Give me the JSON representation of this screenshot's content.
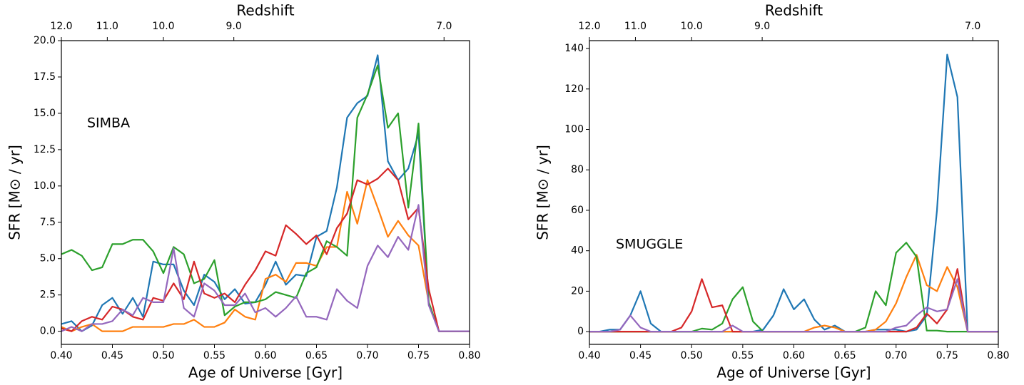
{
  "chart_data": [
    {
      "type": "line",
      "x_label": "Age of Universe [Gyr]",
      "y_label": "SFR [M⊙ / yr]",
      "x2_label": "Redshift",
      "annotation": "SIMBA",
      "annotation_color": "#b22222",
      "xlim": [
        0.4,
        0.8
      ],
      "ylim": [
        -0.9,
        20.0
      ],
      "xticks": [
        {
          "value": 0.4,
          "label": "0.40"
        },
        {
          "value": 0.45,
          "label": "0.45"
        },
        {
          "value": 0.5,
          "label": "0.50"
        },
        {
          "value": 0.55,
          "label": "0.55"
        },
        {
          "value": 0.6,
          "label": "0.60"
        },
        {
          "value": 0.65,
          "label": "0.65"
        },
        {
          "value": 0.7,
          "label": "0.70"
        },
        {
          "value": 0.75,
          "label": "0.75"
        },
        {
          "value": 0.8,
          "label": "0.80"
        }
      ],
      "yticks": [
        {
          "value": 0,
          "label": "0.0"
        },
        2.5,
        {
          "value": 5,
          "label": "5.0"
        },
        7.5,
        {
          "value": 10,
          "label": "10.0"
        },
        12.5,
        {
          "value": 15,
          "label": "15.0"
        },
        17.5,
        {
          "value": 20,
          "label": "20.0"
        }
      ],
      "x2ticks": [
        {
          "value": 0.4,
          "label": "12.0"
        },
        {
          "value": 0.445,
          "label": "11.0"
        },
        {
          "value": 0.5,
          "label": "10.0"
        },
        {
          "value": 0.569,
          "label": "9.0"
        },
        {
          "value": 0.775,
          "label": "7.0"
        }
      ],
      "x": [
        0.4,
        0.41,
        0.42,
        0.43,
        0.44,
        0.45,
        0.46,
        0.47,
        0.48,
        0.49,
        0.5,
        0.51,
        0.52,
        0.53,
        0.54,
        0.55,
        0.56,
        0.57,
        0.58,
        0.59,
        0.6,
        0.61,
        0.62,
        0.63,
        0.64,
        0.65,
        0.66,
        0.67,
        0.68,
        0.69,
        0.7,
        0.71,
        0.72,
        0.73,
        0.74,
        0.75,
        0.76,
        0.77,
        0.78,
        0.79,
        0.8
      ],
      "series": [
        {
          "color": "#1f77b4",
          "values": [
            0.5,
            0.7,
            0.0,
            0.4,
            1.8,
            2.3,
            1.2,
            2.3,
            1.0,
            4.8,
            4.6,
            4.6,
            2.8,
            1.8,
            3.9,
            3.4,
            2.2,
            2.9,
            1.9,
            2.0,
            3.2,
            4.8,
            3.2,
            3.9,
            3.8,
            6.5,
            6.9,
            9.9,
            14.7,
            15.7,
            16.2,
            19.0,
            11.7,
            10.4,
            11.2,
            13.6,
            1.9,
            0,
            0,
            0,
            0
          ]
        },
        {
          "color": "#ff7f0e",
          "values": [
            0.3,
            0,
            0.3,
            0.5,
            0,
            0,
            0,
            0.3,
            0.3,
            0.3,
            0.3,
            0.5,
            0.5,
            0.8,
            0.3,
            0.3,
            0.6,
            1.5,
            1.0,
            0.8,
            3.6,
            3.9,
            3.4,
            4.7,
            4.7,
            4.5,
            5.8,
            5.8,
            9.6,
            7.4,
            10.4,
            8.5,
            6.5,
            7.6,
            6.6,
            5.9,
            2.0,
            0,
            0,
            0,
            0
          ]
        },
        {
          "color": "#2ca02c",
          "values": [
            5.3,
            5.6,
            5.2,
            4.2,
            4.4,
            6.0,
            6.0,
            6.3,
            6.3,
            5.5,
            4.0,
            5.8,
            5.3,
            3.3,
            3.6,
            4.9,
            1.1,
            1.7,
            2.0,
            2.0,
            2.2,
            2.7,
            2.5,
            2.3,
            4.0,
            4.4,
            6.2,
            5.8,
            5.2,
            14.7,
            16.3,
            18.3,
            14.0,
            15.0,
            8.5,
            14.3,
            2.0,
            0,
            0,
            0,
            0
          ]
        },
        {
          "color": "#d62728",
          "values": [
            0.2,
            0.0,
            0.7,
            1.0,
            0.8,
            1.7,
            1.5,
            1.0,
            0.8,
            2.3,
            2.1,
            3.3,
            2.2,
            4.8,
            2.6,
            2.3,
            2.6,
            2.0,
            3.2,
            4.2,
            5.5,
            5.2,
            7.3,
            6.7,
            6.0,
            6.6,
            5.3,
            7.1,
            8.1,
            10.4,
            10.1,
            10.5,
            11.2,
            10.4,
            7.7,
            8.5,
            2.9,
            0,
            0,
            0,
            0
          ]
        },
        {
          "color": "#9467bd",
          "values": [
            0,
            0.3,
            0,
            0.5,
            0.5,
            0.7,
            1.5,
            1.1,
            2.3,
            2.0,
            2.0,
            5.7,
            1.6,
            1.0,
            3.3,
            2.8,
            1.8,
            1.8,
            2.6,
            1.3,
            1.6,
            1.0,
            1.6,
            2.4,
            1.0,
            1.0,
            0.8,
            2.9,
            2.1,
            1.6,
            4.5,
            5.9,
            5.1,
            6.5,
            5.6,
            8.7,
            1.8,
            0,
            0,
            0,
            0
          ]
        }
      ]
    },
    {
      "type": "line",
      "x_label": "Age of Universe [Gyr]",
      "y_label": "SFR [M⊙ / yr]",
      "x2_label": "Redshift",
      "annotation": "SMUGGLE",
      "annotation_color": "#1ec0f0",
      "xlim": [
        0.4,
        0.8
      ],
      "ylim": [
        -6.3,
        143.9
      ],
      "xticks": [
        {
          "value": 0.4,
          "label": "0.40"
        },
        {
          "value": 0.45,
          "label": "0.45"
        },
        {
          "value": 0.5,
          "label": "0.50"
        },
        {
          "value": 0.55,
          "label": "0.55"
        },
        {
          "value": 0.6,
          "label": "0.60"
        },
        {
          "value": 0.65,
          "label": "0.65"
        },
        {
          "value": 0.7,
          "label": "0.70"
        },
        {
          "value": 0.75,
          "label": "0.75"
        },
        {
          "value": 0.8,
          "label": "0.80"
        }
      ],
      "yticks": [
        0,
        20,
        40,
        60,
        80,
        100,
        120,
        140
      ],
      "x2ticks": [
        {
          "value": 0.4,
          "label": "12.0"
        },
        {
          "value": 0.445,
          "label": "11.0"
        },
        {
          "value": 0.5,
          "label": "10.0"
        },
        {
          "value": 0.569,
          "label": "9.0"
        },
        {
          "value": 0.775,
          "label": "7.0"
        }
      ],
      "x": [
        0.4,
        0.41,
        0.42,
        0.43,
        0.44,
        0.45,
        0.46,
        0.47,
        0.48,
        0.49,
        0.5,
        0.51,
        0.52,
        0.53,
        0.54,
        0.55,
        0.56,
        0.57,
        0.58,
        0.59,
        0.6,
        0.61,
        0.62,
        0.63,
        0.64,
        0.65,
        0.66,
        0.67,
        0.68,
        0.69,
        0.7,
        0.71,
        0.72,
        0.73,
        0.74,
        0.75,
        0.76,
        0.77,
        0.78,
        0.79,
        0.8
      ],
      "series": [
        {
          "color": "#1f77b4",
          "values": [
            0,
            0,
            1,
            1,
            8,
            20,
            4,
            0,
            0,
            0,
            0,
            0,
            0,
            0,
            0,
            0,
            0,
            1,
            8,
            21,
            11,
            16,
            6,
            1,
            3,
            0,
            0,
            0,
            1,
            1,
            1,
            0,
            1,
            8,
            60,
            137,
            116,
            0,
            0,
            0,
            0
          ]
        },
        {
          "color": "#ff7f0e",
          "values": [
            0,
            0,
            0,
            0,
            0,
            0,
            0,
            0,
            0,
            0,
            0,
            0,
            0,
            0,
            0,
            0,
            0,
            0,
            0,
            0,
            0,
            0,
            2,
            3,
            2,
            0,
            0,
            0,
            1,
            5,
            14,
            27,
            38,
            23,
            20,
            32,
            22,
            0,
            0,
            0,
            0
          ]
        },
        {
          "color": "#2ca02c",
          "values": [
            0,
            0,
            0,
            0,
            0,
            0,
            0,
            0,
            0,
            0,
            0,
            1.5,
            1,
            4,
            16,
            22,
            5,
            0,
            0,
            0,
            0,
            0,
            0,
            0,
            0,
            0,
            0,
            2,
            20,
            13,
            39,
            44,
            37,
            0.5,
            0.5,
            0,
            0,
            0,
            0,
            0,
            0
          ]
        },
        {
          "color": "#d62728",
          "values": [
            0,
            0,
            0,
            0,
            0,
            0,
            0,
            0,
            0,
            2,
            10,
            26,
            12,
            13,
            0,
            0,
            0,
            0,
            0,
            0,
            0,
            0,
            0,
            0,
            0,
            0,
            0,
            0,
            0,
            0,
            0,
            0,
            2,
            9,
            4,
            11,
            31,
            0,
            0,
            0,
            0
          ]
        },
        {
          "color": "#9467bd",
          "values": [
            0,
            0,
            0,
            1,
            8,
            2,
            0,
            0,
            0,
            0,
            0,
            0,
            0,
            0,
            3,
            0,
            0,
            0,
            0,
            0,
            0,
            0,
            0,
            0,
            0,
            0,
            0,
            0,
            0,
            0,
            2,
            3,
            8,
            12,
            10,
            11,
            26,
            0,
            0,
            0,
            0
          ]
        }
      ]
    }
  ]
}
